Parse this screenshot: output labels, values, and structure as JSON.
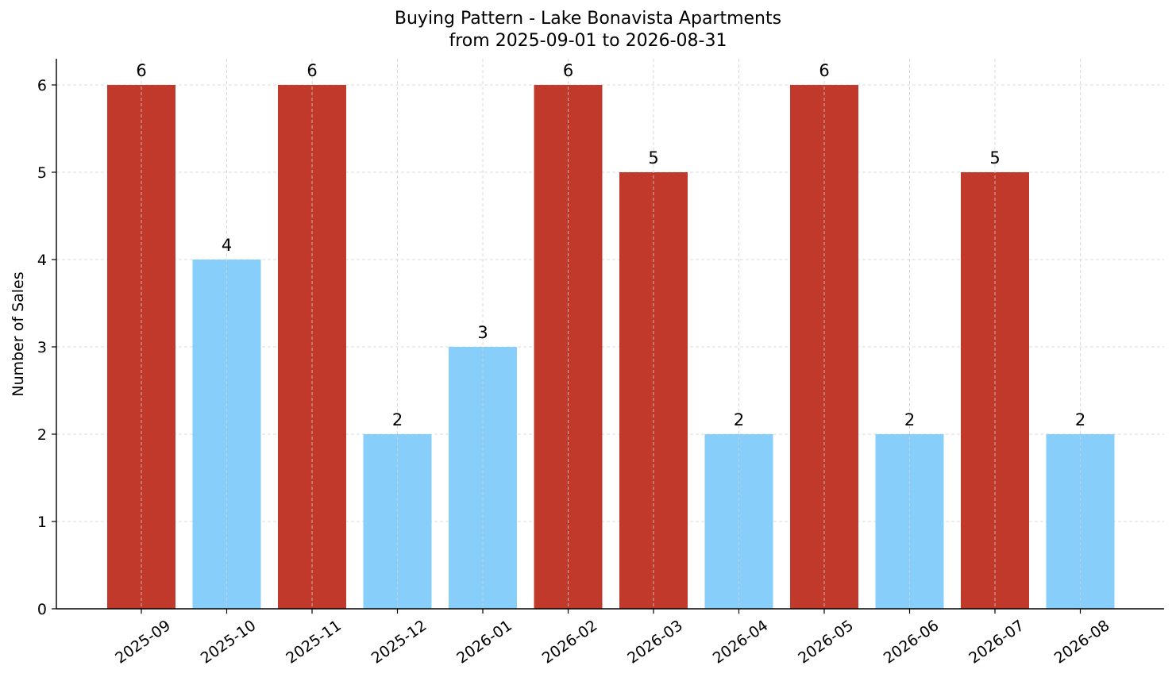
{
  "chart_data": {
    "type": "bar",
    "title": "Buying Pattern - Lake Bonavista Apartments",
    "subtitle": "from 2025-09-01 to 2026-08-31",
    "xlabel": "",
    "ylabel": "Number of Sales",
    "ylim": [
      0,
      6.3
    ],
    "yticks": [
      "0",
      "1",
      "2",
      "3",
      "4",
      "5",
      "6"
    ],
    "grid": true,
    "categories": [
      "2025-09",
      "2025-10",
      "2025-11",
      "2025-12",
      "2026-01",
      "2026-02",
      "2026-03",
      "2026-04",
      "2026-05",
      "2026-06",
      "2026-07",
      "2026-08"
    ],
    "values": [
      6,
      4,
      6,
      2,
      3,
      6,
      5,
      2,
      6,
      2,
      5,
      2
    ],
    "bar_colors": [
      "#c0392b",
      "#87cefa",
      "#c0392b",
      "#87cefa",
      "#87cefa",
      "#c0392b",
      "#c0392b",
      "#87cefa",
      "#c0392b",
      "#87cefa",
      "#c0392b",
      "#87cefa"
    ],
    "data_labels": [
      "6",
      "4",
      "6",
      "2",
      "3",
      "6",
      "5",
      "2",
      "6",
      "2",
      "5",
      "2"
    ]
  }
}
